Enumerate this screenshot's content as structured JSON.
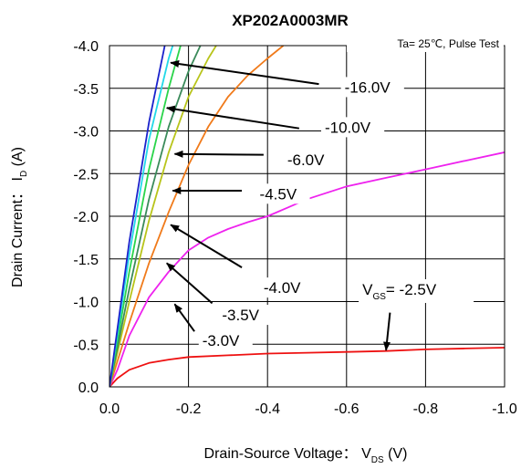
{
  "chart_data": {
    "type": "line",
    "title": "XP202A0003MR",
    "condition_note": "Ta= 25℃,  Pulse Test",
    "xlabel": {
      "main": "Drain-Source Voltage： V",
      "sub": "DS",
      "unit": "  (V)"
    },
    "ylabel": {
      "main": "Drain Current： I",
      "sub": "D",
      "unit": "  (A)"
    },
    "xlim": [
      0,
      -1.0
    ],
    "ylim": [
      0,
      -4.0
    ],
    "x_ticks": [
      {
        "value": 0.0,
        "label": "0.0"
      },
      {
        "value": -0.2,
        "label": "-0.2"
      },
      {
        "value": -0.4,
        "label": "-0.4"
      },
      {
        "value": -0.6,
        "label": "-0.6"
      },
      {
        "value": -0.8,
        "label": "-0.8"
      },
      {
        "value": -1.0,
        "label": "-1.0"
      }
    ],
    "y_ticks": [
      {
        "value": -4.0,
        "label": "-4.0"
      },
      {
        "value": -3.5,
        "label": "-3.5"
      },
      {
        "value": -3.0,
        "label": "-3.0"
      },
      {
        "value": -2.5,
        "label": "-2.5"
      },
      {
        "value": -2.0,
        "label": "-2.0"
      },
      {
        "value": -1.5,
        "label": "-1.5"
      },
      {
        "value": -1.0,
        "label": "-1.0"
      },
      {
        "value": -0.5,
        "label": "-0.5"
      },
      {
        "value": 0.0,
        "label": "0.0"
      }
    ],
    "grid": true,
    "series": [
      {
        "vgs": -2.5,
        "color": "#ee1111",
        "points": [
          [
            0,
            0
          ],
          [
            -0.02,
            -0.1
          ],
          [
            -0.05,
            -0.2
          ],
          [
            -0.1,
            -0.28
          ],
          [
            -0.15,
            -0.32
          ],
          [
            -0.2,
            -0.35
          ],
          [
            -0.3,
            -0.37
          ],
          [
            -0.4,
            -0.39
          ],
          [
            -0.5,
            -0.4
          ],
          [
            -0.6,
            -0.41
          ],
          [
            -0.7,
            -0.42
          ],
          [
            -0.8,
            -0.44
          ],
          [
            -0.9,
            -0.45
          ],
          [
            -1.0,
            -0.46
          ]
        ]
      },
      {
        "vgs": -3.0,
        "color": "#ee22ee",
        "points": [
          [
            0,
            0
          ],
          [
            -0.02,
            -0.2
          ],
          [
            -0.05,
            -0.6
          ],
          [
            -0.1,
            -1.05
          ],
          [
            -0.15,
            -1.35
          ],
          [
            -0.2,
            -1.6
          ],
          [
            -0.25,
            -1.75
          ],
          [
            -0.3,
            -1.85
          ],
          [
            -0.35,
            -1.93
          ],
          [
            -0.4,
            -2.0
          ],
          [
            -0.45,
            -2.1
          ],
          [
            -0.5,
            -2.2
          ],
          [
            -0.6,
            -2.35
          ],
          [
            -0.7,
            -2.45
          ],
          [
            -0.8,
            -2.55
          ],
          [
            -0.9,
            -2.65
          ],
          [
            -1.0,
            -2.75
          ]
        ]
      },
      {
        "vgs": -3.5,
        "color": "#f07a1a",
        "points": [
          [
            0,
            0
          ],
          [
            -0.05,
            -0.75
          ],
          [
            -0.1,
            -1.45
          ],
          [
            -0.15,
            -2.05
          ],
          [
            -0.2,
            -2.6
          ],
          [
            -0.25,
            -3.05
          ],
          [
            -0.3,
            -3.4
          ],
          [
            -0.35,
            -3.65
          ],
          [
            -0.4,
            -3.85
          ],
          [
            -0.44,
            -4.0
          ]
        ]
      },
      {
        "vgs": -4.0,
        "color": "#b8c41a",
        "points": [
          [
            0,
            0
          ],
          [
            -0.05,
            -1.0
          ],
          [
            -0.1,
            -1.95
          ],
          [
            -0.15,
            -2.75
          ],
          [
            -0.2,
            -3.4
          ],
          [
            -0.25,
            -3.85
          ],
          [
            -0.27,
            -4.0
          ]
        ]
      },
      {
        "vgs": -4.5,
        "color": "#3a8a5a",
        "points": [
          [
            0,
            0
          ],
          [
            -0.05,
            -1.15
          ],
          [
            -0.1,
            -2.2
          ],
          [
            -0.15,
            -3.05
          ],
          [
            -0.2,
            -3.7
          ],
          [
            -0.23,
            -4.0
          ]
        ]
      },
      {
        "vgs": -6.0,
        "color": "#2ad44a",
        "points": [
          [
            0,
            0
          ],
          [
            -0.05,
            -1.35
          ],
          [
            -0.1,
            -2.55
          ],
          [
            -0.15,
            -3.5
          ],
          [
            -0.18,
            -4.0
          ]
        ]
      },
      {
        "vgs": -10.0,
        "color": "#22d8e8",
        "points": [
          [
            0,
            0
          ],
          [
            -0.05,
            -1.55
          ],
          [
            -0.1,
            -2.9
          ],
          [
            -0.15,
            -3.85
          ],
          [
            -0.16,
            -4.0
          ]
        ]
      },
      {
        "vgs": -16.0,
        "color": "#1a22cc",
        "points": [
          [
            0,
            0
          ],
          [
            -0.05,
            -1.7
          ],
          [
            -0.1,
            -3.1
          ],
          [
            -0.14,
            -4.0
          ]
        ]
      }
    ],
    "annotations": [
      {
        "text": "-16.0V",
        "text_x": -0.595,
        "text_y": -3.45,
        "arrow_from": [
          -0.53,
          -3.55
        ],
        "arrow_to": [
          -0.155,
          -3.8
        ]
      },
      {
        "text": "-10.0V",
        "text_x": -0.545,
        "text_y": -2.98,
        "arrow_from": [
          -0.48,
          -3.03
        ],
        "arrow_to": [
          -0.145,
          -3.27
        ]
      },
      {
        "text": "-6.0V",
        "text_x": -0.45,
        "text_y": -2.6,
        "arrow_from": [
          -0.39,
          -2.72
        ],
        "arrow_to": [
          -0.165,
          -2.73
        ]
      },
      {
        "text": "-4.5V",
        "text_x": -0.38,
        "text_y": -2.2,
        "arrow_from": [
          -0.335,
          -2.3
        ],
        "arrow_to": [
          -0.16,
          -2.3
        ]
      },
      {
        "text": "-4.0V",
        "text_x": -0.39,
        "text_y": -1.1,
        "arrow_from": [
          -0.335,
          -1.4
        ],
        "arrow_to": [
          -0.155,
          -1.9
        ]
      },
      {
        "text": "-3.5V",
        "text_x": -0.285,
        "text_y": -0.78,
        "arrow_from": [
          -0.26,
          -0.98
        ],
        "arrow_to": [
          -0.145,
          -1.45
        ]
      },
      {
        "text": "-3.0V",
        "text_x": -0.235,
        "text_y": -0.48,
        "arrow_from": [
          -0.215,
          -0.65
        ],
        "arrow_to": [
          -0.165,
          -0.97
        ]
      }
    ],
    "vgs_annotation": {
      "prefix": "V",
      "sub": "GS",
      "value": "= -2.5V",
      "text_x": -0.64,
      "text_y": -1.08,
      "arrow_from": [
        -0.71,
        -0.87
      ],
      "arrow_to": [
        -0.7,
        -0.43
      ]
    }
  }
}
